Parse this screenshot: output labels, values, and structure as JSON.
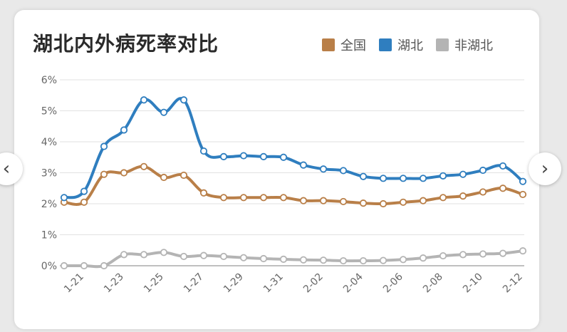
{
  "colors": {
    "全国": "#b97f48",
    "湖北": "#2f7ebf",
    "非湖北": "#b4b4b4"
  },
  "nav": {
    "prev_glyph": "‹",
    "next_glyph": "›"
  },
  "chart_data": {
    "type": "line",
    "title": "湖北内外病死率对比",
    "legend_position": "top-right",
    "grid": true,
    "ylim": [
      0,
      6
    ],
    "yticks": [
      "0%",
      "1%",
      "2%",
      "3%",
      "4%",
      "5%",
      "6%"
    ],
    "x": [
      "1-20",
      "1-21",
      "1-22",
      "1-23",
      "1-24",
      "1-25",
      "1-26",
      "1-27",
      "1-28",
      "1-29",
      "1-30",
      "1-31",
      "2-01",
      "2-02",
      "2-03",
      "2-04",
      "2-05",
      "2-06",
      "2-07",
      "2-08",
      "2-09",
      "2-10",
      "2-11",
      "2-12"
    ],
    "x_tick_labels": [
      "1-21",
      "1-23",
      "1-25",
      "1-27",
      "1-29",
      "1-31",
      "2-02",
      "2-04",
      "2-06",
      "2-08",
      "2-10",
      "2-12"
    ],
    "series": [
      {
        "name": "全国",
        "values": [
          2.05,
          2.05,
          2.95,
          3.0,
          3.2,
          2.85,
          2.92,
          2.35,
          2.2,
          2.2,
          2.2,
          2.2,
          2.1,
          2.1,
          2.07,
          2.02,
          2.0,
          2.05,
          2.1,
          2.2,
          2.25,
          2.38,
          2.5,
          2.3
        ]
      },
      {
        "name": "湖北",
        "values": [
          2.2,
          2.4,
          3.85,
          4.38,
          5.35,
          4.95,
          5.35,
          3.7,
          3.52,
          3.55,
          3.52,
          3.5,
          3.25,
          3.12,
          3.07,
          2.88,
          2.82,
          2.82,
          2.82,
          2.9,
          2.95,
          3.08,
          3.22,
          2.72
        ]
      },
      {
        "name": "非湖北",
        "values": [
          0.0,
          0.0,
          0.0,
          0.36,
          0.36,
          0.43,
          0.3,
          0.33,
          0.3,
          0.26,
          0.23,
          0.21,
          0.19,
          0.18,
          0.16,
          0.16,
          0.17,
          0.2,
          0.25,
          0.32,
          0.36,
          0.38,
          0.4,
          0.48
        ]
      }
    ]
  }
}
